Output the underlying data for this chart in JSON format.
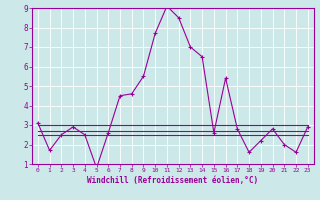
{
  "xlabel": "Windchill (Refroidissement éolien,°C)",
  "background_color": "#cce8e8",
  "grid_color": "#aacccc",
  "line_color": "#990099",
  "xlim": [
    -0.5,
    23.5
  ],
  "ylim": [
    1,
    9
  ],
  "xticks": [
    0,
    1,
    2,
    3,
    4,
    5,
    6,
    7,
    8,
    9,
    10,
    11,
    12,
    13,
    14,
    15,
    16,
    17,
    18,
    19,
    20,
    21,
    22,
    23
  ],
  "yticks": [
    1,
    2,
    3,
    4,
    5,
    6,
    7,
    8,
    9
  ],
  "series": [
    [
      3.1,
      1.7,
      2.5,
      2.9,
      2.5,
      0.8,
      2.6,
      4.5,
      4.6,
      5.5,
      7.7,
      9.1,
      8.5,
      7.0,
      6.5,
      2.6,
      5.4,
      2.8,
      1.6,
      2.2,
      2.8,
      2.0,
      1.6,
      2.9
    ],
    [
      3.0,
      3.0,
      3.0,
      3.0,
      3.0,
      3.0,
      3.0,
      3.0,
      3.0,
      3.0,
      3.0,
      3.0,
      3.0,
      3.0,
      3.0,
      3.0,
      3.0,
      3.0,
      3.0,
      3.0,
      3.0,
      3.0,
      3.0,
      3.0
    ],
    [
      2.7,
      2.7,
      2.7,
      2.7,
      2.7,
      2.7,
      2.7,
      2.7,
      2.7,
      2.7,
      2.7,
      2.7,
      2.7,
      2.7,
      2.7,
      2.7,
      2.7,
      2.7,
      2.7,
      2.7,
      2.7,
      2.7,
      2.7,
      2.7
    ],
    [
      2.5,
      2.5,
      2.5,
      2.5,
      2.5,
      2.5,
      2.5,
      2.5,
      2.5,
      2.5,
      2.5,
      2.5,
      2.5,
      2.5,
      2.5,
      2.5,
      2.5,
      2.5,
      2.5,
      2.5,
      2.5,
      2.5,
      2.5,
      2.5
    ]
  ]
}
